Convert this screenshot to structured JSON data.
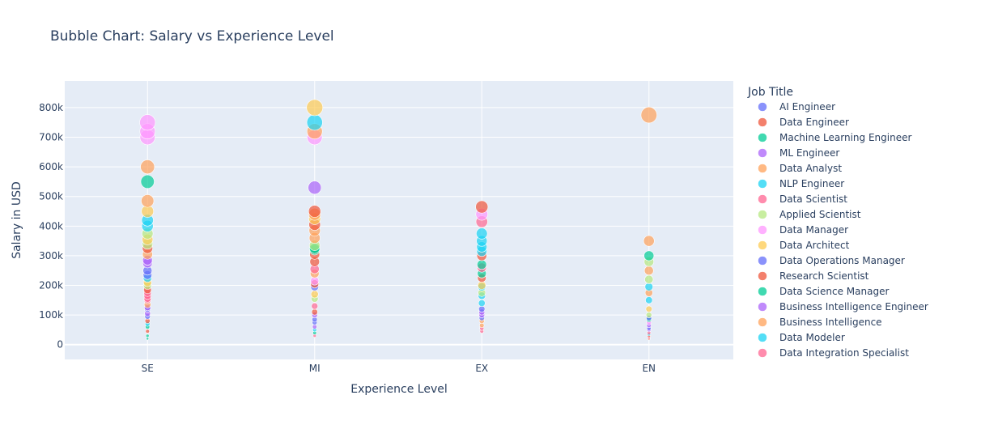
{
  "chart_data": {
    "type": "scatter",
    "title": "Bubble Chart: Salary vs Experience Level",
    "xlabel": "Experience Level",
    "ylabel": "Salary in USD",
    "categories": [
      "SE",
      "MI",
      "EX",
      "EN"
    ],
    "ylim": [
      -50000,
      890000
    ],
    "yticks": [
      0,
      100000,
      200000,
      300000,
      400000,
      500000,
      600000,
      700000,
      800000
    ],
    "ytick_labels": [
      "0",
      "100k",
      "200k",
      "300k",
      "400k",
      "500k",
      "600k",
      "700k",
      "800k"
    ],
    "grid": true,
    "legend_title": "Job Title",
    "legend_position": "right",
    "series": [
      {
        "name": "AI Engineer",
        "color": "#636efa",
        "points": [
          {
            "x": "SE",
            "y": 250000
          },
          {
            "x": "SE",
            "y": 235000
          },
          {
            "x": "SE",
            "y": 120000
          },
          {
            "x": "MI",
            "y": 195000
          },
          {
            "x": "MI",
            "y": 85000
          },
          {
            "x": "EX",
            "y": 120000
          },
          {
            "x": "EN",
            "y": 90000
          }
        ]
      },
      {
        "name": "Data Engineer",
        "color": "#ef553b",
        "points": [
          {
            "x": "SE",
            "y": 325000
          },
          {
            "x": "SE",
            "y": 80000
          },
          {
            "x": "SE",
            "y": 45000
          },
          {
            "x": "MI",
            "y": 450000
          },
          {
            "x": "MI",
            "y": 280000
          },
          {
            "x": "MI",
            "y": 110000
          },
          {
            "x": "EX",
            "y": 465000
          },
          {
            "x": "EX",
            "y": 300000
          },
          {
            "x": "EN",
            "y": 30000
          }
        ]
      },
      {
        "name": "Machine Learning Engineer",
        "color": "#00cc96",
        "points": [
          {
            "x": "SE",
            "y": 550000
          },
          {
            "x": "SE",
            "y": 60000
          },
          {
            "x": "SE",
            "y": 20000
          },
          {
            "x": "MI",
            "y": 320000
          },
          {
            "x": "MI",
            "y": 40000
          },
          {
            "x": "EX",
            "y": 270000
          },
          {
            "x": "EN",
            "y": 300000
          }
        ]
      },
      {
        "name": "ML Engineer",
        "color": "#ab63fa",
        "points": [
          {
            "x": "SE",
            "y": 275000
          },
          {
            "x": "SE",
            "y": 125000
          },
          {
            "x": "SE",
            "y": 285000
          },
          {
            "x": "MI",
            "y": 530000
          },
          {
            "x": "MI",
            "y": 60000
          },
          {
            "x": "EX",
            "y": 110000
          },
          {
            "x": "EN",
            "y": 65000
          }
        ]
      },
      {
        "name": "Data Analyst",
        "color": "#ffa15a",
        "points": [
          {
            "x": "SE",
            "y": 600000
          },
          {
            "x": "SE",
            "y": 485000
          },
          {
            "x": "SE",
            "y": 135000
          },
          {
            "x": "MI",
            "y": 720000
          },
          {
            "x": "MI",
            "y": 440000
          },
          {
            "x": "MI",
            "y": 360000
          },
          {
            "x": "EX",
            "y": 80000
          },
          {
            "x": "EN",
            "y": 775000
          },
          {
            "x": "EN",
            "y": 350000
          },
          {
            "x": "EN",
            "y": 250000
          }
        ]
      },
      {
        "name": "NLP Engineer",
        "color": "#19d3f3",
        "points": [
          {
            "x": "SE",
            "y": 420000
          },
          {
            "x": "SE",
            "y": 400000
          },
          {
            "x": "SE",
            "y": 225000
          },
          {
            "x": "MI",
            "y": 750000
          },
          {
            "x": "EX",
            "y": 350000
          },
          {
            "x": "EX",
            "y": 330000
          },
          {
            "x": "EX",
            "y": 315000
          },
          {
            "x": "EX",
            "y": 195000
          },
          {
            "x": "EX",
            "y": 165000
          },
          {
            "x": "EX",
            "y": 140000
          },
          {
            "x": "EN",
            "y": 195000
          },
          {
            "x": "EN",
            "y": 150000
          }
        ]
      },
      {
        "name": "Data Scientist",
        "color": "#ff6692",
        "points": [
          {
            "x": "SE",
            "y": 165000
          },
          {
            "x": "SE",
            "y": 150000
          },
          {
            "x": "SE",
            "y": 175000
          },
          {
            "x": "MI",
            "y": 255000
          },
          {
            "x": "MI",
            "y": 130000
          },
          {
            "x": "EX",
            "y": 415000
          },
          {
            "x": "EX",
            "y": 260000
          },
          {
            "x": "EX",
            "y": 55000
          },
          {
            "x": "EN",
            "y": 40000
          }
        ]
      },
      {
        "name": "Applied Scientist",
        "color": "#b6e880",
        "points": [
          {
            "x": "SE",
            "y": 375000
          },
          {
            "x": "SE",
            "y": 340000
          },
          {
            "x": "SE",
            "y": 200000
          },
          {
            "x": "MI",
            "y": 335000
          },
          {
            "x": "MI",
            "y": 155000
          },
          {
            "x": "EX",
            "y": 175000
          },
          {
            "x": "EN",
            "y": 280000
          },
          {
            "x": "EN",
            "y": 220000
          },
          {
            "x": "EN",
            "y": 100000
          }
        ]
      },
      {
        "name": "Data Manager",
        "color": "#ff97ff",
        "points": [
          {
            "x": "SE",
            "y": 750000
          },
          {
            "x": "SE",
            "y": 720000
          },
          {
            "x": "SE",
            "y": 700000
          },
          {
            "x": "MI",
            "y": 700000
          },
          {
            "x": "MI",
            "y": 215000
          },
          {
            "x": "EX",
            "y": 440000
          },
          {
            "x": "EN",
            "y": 75000
          }
        ]
      },
      {
        "name": "Data Architect",
        "color": "#fecb52",
        "points": [
          {
            "x": "SE",
            "y": 450000
          },
          {
            "x": "SE",
            "y": 355000
          },
          {
            "x": "SE",
            "y": 210000
          },
          {
            "x": "MI",
            "y": 800000
          },
          {
            "x": "MI",
            "y": 425000
          },
          {
            "x": "MI",
            "y": 170000
          },
          {
            "x": "EX",
            "y": 200000
          },
          {
            "x": "EN",
            "y": 120000
          }
        ]
      },
      {
        "name": "Data Operations Manager",
        "color": "#636efa",
        "points": [
          {
            "x": "SE",
            "y": 95000
          },
          {
            "x": "MI",
            "y": 75000
          },
          {
            "x": "EX",
            "y": 90000
          },
          {
            "x": "EN",
            "y": 55000
          }
        ]
      },
      {
        "name": "Research Scientist",
        "color": "#ef553b",
        "points": [
          {
            "x": "SE",
            "y": 185000
          },
          {
            "x": "MI",
            "y": 405000
          },
          {
            "x": "MI",
            "y": 305000
          },
          {
            "x": "MI",
            "y": 205000
          },
          {
            "x": "EX",
            "y": 225000
          },
          {
            "x": "EN",
            "y": 20000
          }
        ]
      },
      {
        "name": "Data Science Manager",
        "color": "#00cc96",
        "points": [
          {
            "x": "SE",
            "y": 30000
          },
          {
            "x": "MI",
            "y": 325000
          },
          {
            "x": "EX",
            "y": 240000
          },
          {
            "x": "EN",
            "y": 85000
          }
        ]
      },
      {
        "name": "Business Intelligence Engineer",
        "color": "#ab63fa",
        "points": [
          {
            "x": "SE",
            "y": 105000
          },
          {
            "x": "MI",
            "y": 100000
          },
          {
            "x": "EX",
            "y": 100000
          },
          {
            "x": "EN",
            "y": 50000
          }
        ]
      },
      {
        "name": "Business Intelligence",
        "color": "#ffa15a",
        "points": [
          {
            "x": "SE",
            "y": 305000
          },
          {
            "x": "MI",
            "y": 385000
          },
          {
            "x": "MI",
            "y": 240000
          },
          {
            "x": "EX",
            "y": 65000
          },
          {
            "x": "EN",
            "y": 175000
          }
        ]
      },
      {
        "name": "Data Modeler",
        "color": "#19d3f3",
        "points": [
          {
            "x": "SE",
            "y": 70000
          },
          {
            "x": "MI",
            "y": 50000
          },
          {
            "x": "EX",
            "y": 375000
          },
          {
            "x": "EN",
            "y": 35000
          }
        ]
      },
      {
        "name": "Data Integration Specialist",
        "color": "#ff6692",
        "points": [
          {
            "x": "SE",
            "y": 155000
          },
          {
            "x": "MI",
            "y": 30000
          },
          {
            "x": "EX",
            "y": 45000
          },
          {
            "x": "EN",
            "y": 25000
          }
        ]
      }
    ]
  }
}
